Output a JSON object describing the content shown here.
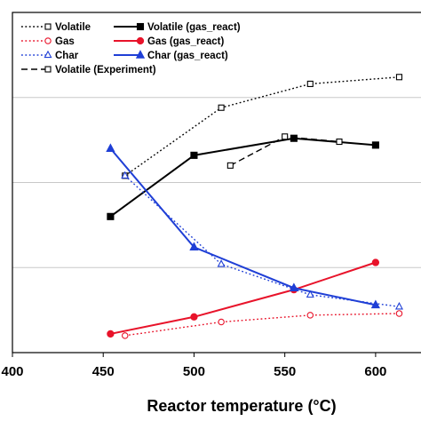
{
  "chart_data": {
    "type": "line",
    "title": "",
    "xlabel": "Reactor temperature (°C)",
    "ylabel": "",
    "xlim": [
      400,
      625
    ],
    "ylim": [
      0,
      100
    ],
    "x_ticks": [
      400,
      450,
      500,
      550,
      600
    ],
    "grid": "horizontal",
    "legend_placement": "top-left",
    "series": [
      {
        "name": "Volatile",
        "color": "#000000",
        "dash": "dotted",
        "marker": "square-open",
        "x": [
          462,
          515,
          564,
          613
        ],
        "y": [
          52,
          72,
          79,
          81
        ]
      },
      {
        "name": "Volatile (gas_react)",
        "color": "#000000",
        "dash": "solid",
        "marker": "square-filled",
        "x": [
          454,
          500,
          555,
          600
        ],
        "y": [
          40,
          58,
          63,
          61
        ]
      },
      {
        "name": "Gas",
        "color": "#e8132a",
        "dash": "dotted",
        "marker": "circle-open",
        "x": [
          462,
          515,
          564,
          613
        ],
        "y": [
          5,
          9,
          11,
          11.5
        ]
      },
      {
        "name": "Gas (gas_react)",
        "color": "#e8132a",
        "dash": "solid",
        "marker": "circle-filled",
        "x": [
          454,
          500,
          555,
          600
        ],
        "y": [
          5.5,
          10.5,
          18.5,
          26.5
        ]
      },
      {
        "name": "Char",
        "color": "#1f3fd6",
        "dash": "dotted",
        "marker": "triangle-open",
        "x": [
          462,
          515,
          564,
          613
        ],
        "y": [
          52,
          26,
          17,
          13.5
        ]
      },
      {
        "name": "Char (gas_react)",
        "color": "#1f3fd6",
        "dash": "solid",
        "marker": "triangle-filled",
        "x": [
          454,
          500,
          555,
          600
        ],
        "y": [
          60,
          31,
          19,
          14
        ]
      },
      {
        "name": "Volatile (Experiment)",
        "color": "#000000",
        "dash": "dashed",
        "marker": "square-open",
        "x": [
          520,
          550,
          580
        ],
        "y": [
          55,
          63.5,
          62
        ]
      }
    ]
  }
}
